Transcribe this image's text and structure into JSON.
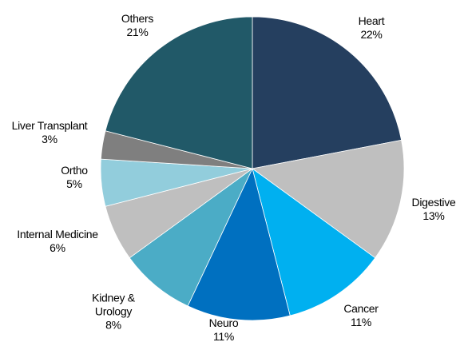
{
  "chart_data": {
    "type": "pie",
    "categories": [
      "Heart",
      "Digestive",
      "Cancer",
      "Neuro",
      "Kidney & Urology",
      "Internal Medicine",
      "Ortho",
      "Liver Transplant",
      "Others"
    ],
    "values": [
      22,
      13,
      11,
      11,
      8,
      6,
      5,
      3,
      21
    ],
    "value_labels": [
      "22%",
      "13%",
      "11%",
      "11%",
      "8%",
      "6%",
      "5%",
      "3%",
      "21%"
    ],
    "colors": [
      "#253f5f",
      "#bfbfbf",
      "#00b0f0",
      "#0070c0",
      "#4bacc6",
      "#bfbfbf",
      "#92cddc",
      "#7f7f7f",
      "#215968"
    ]
  }
}
